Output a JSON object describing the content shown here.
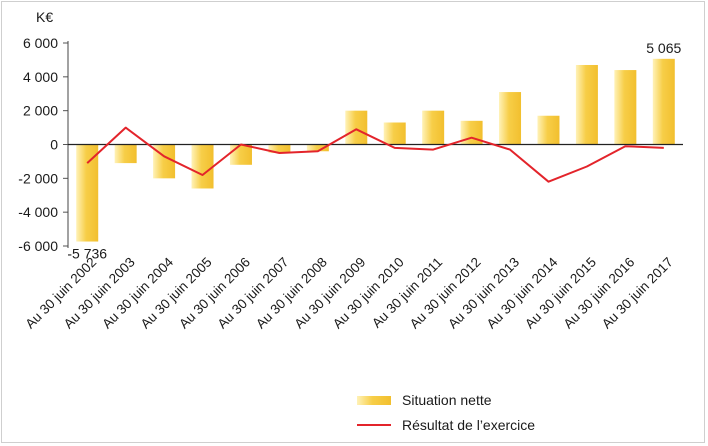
{
  "chart_data": {
    "type": "bar",
    "ylabel": "K€",
    "ylim": [
      -6000,
      6000
    ],
    "yticks": [
      6000,
      4000,
      2000,
      0,
      -2000,
      -4000,
      -6000
    ],
    "ytick_labels": [
      "6 000",
      "4 000",
      "2 000",
      "0",
      "-2 000",
      "-4 000",
      "-6 000"
    ],
    "categories": [
      "Au 30 juin 2002",
      "Au 30 juin 2003",
      "Au 30 juin 2004",
      "Au 30 juin 2005",
      "Au 30 juin 2006",
      "Au 30 juin 2007",
      "Au 30 juin 2008",
      "Au 30 juin 2009",
      "Au 30 juin 2010",
      "Au 30 juin 2011",
      "Au 30 juin 2012",
      "Au 30 juin 2013",
      "Au 30 juin 2014",
      "Au 30 juin 2015",
      "Au 30 juin 2016",
      "Au 30 juin 2017"
    ],
    "series": [
      {
        "name": "Situation nette",
        "type": "bar",
        "color": "#F7CE48",
        "values": [
          -5736,
          -1100,
          -2000,
          -2600,
          -1200,
          -500,
          -400,
          2000,
          1300,
          2000,
          1400,
          3100,
          1700,
          4700,
          4400,
          5065
        ]
      },
      {
        "name": "Résultat de l'exercice",
        "type": "line",
        "color": "#E3242B",
        "values": [
          -1100,
          1000,
          -700,
          -1800,
          0,
          -500,
          -400,
          900,
          -200,
          -300,
          400,
          -300,
          -2200,
          -1300,
          -100,
          -200
        ]
      }
    ],
    "annotations": [
      {
        "category_index": 0,
        "text": "-5 736"
      },
      {
        "category_index": 15,
        "text": "5 065"
      }
    ],
    "legend": {
      "position": "bottom-right",
      "labels": [
        "Situation nette",
        "Résultat de l’exercice"
      ]
    }
  }
}
